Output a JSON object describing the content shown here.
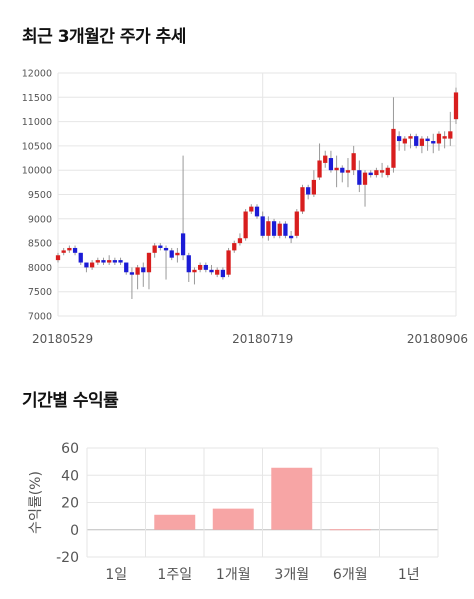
{
  "titles": {
    "price_trend": "최근 3개월간 주가 추세",
    "period_return": "기간별 수익률"
  },
  "colors": {
    "up": "#d81e1e",
    "down": "#1c1cd6",
    "bar": "#f7a5a5",
    "grid": "#e6e6e6"
  },
  "chart_data": [
    {
      "type": "candlestick",
      "title": "최근 3개월간 주가 추세",
      "ylim": [
        7000,
        12000
      ],
      "yticks": [
        7000,
        7500,
        8000,
        8500,
        9000,
        9500,
        10000,
        10500,
        11000,
        11500,
        12000
      ],
      "xtick_labels": [
        {
          "index": 0,
          "label": "20180529"
        },
        {
          "index": 36,
          "label": "20180719"
        },
        {
          "index": 70,
          "label": "20180906"
        }
      ],
      "grid": true,
      "candles": [
        [
          8150,
          8300,
          8100,
          8250
        ],
        [
          8300,
          8400,
          8250,
          8350
        ],
        [
          8350,
          8450,
          8300,
          8400
        ],
        [
          8400,
          8450,
          8250,
          8300
        ],
        [
          8300,
          8300,
          8050,
          8100
        ],
        [
          8100,
          8100,
          7900,
          8000
        ],
        [
          8000,
          8150,
          7950,
          8100
        ],
        [
          8100,
          8200,
          8050,
          8150
        ],
        [
          8150,
          8200,
          8050,
          8100
        ],
        [
          8100,
          8250,
          8050,
          8150
        ],
        [
          8150,
          8200,
          8050,
          8100
        ],
        [
          8150,
          8200,
          8050,
          8100
        ],
        [
          8100,
          8100,
          7850,
          7900
        ],
        [
          7900,
          8000,
          7350,
          7850
        ],
        [
          7850,
          8050,
          7550,
          8000
        ],
        [
          8000,
          8100,
          7600,
          7900
        ],
        [
          7900,
          8300,
          7550,
          8300
        ],
        [
          8300,
          8500,
          8200,
          8450
        ],
        [
          8450,
          8500,
          8350,
          8400
        ],
        [
          8400,
          8450,
          7750,
          8350
        ],
        [
          8350,
          8400,
          8150,
          8200
        ],
        [
          8250,
          8400,
          8100,
          8300
        ],
        [
          8700,
          10300,
          8150,
          8250
        ],
        [
          8250,
          8300,
          7700,
          7900
        ],
        [
          7900,
          8000,
          7650,
          7950
        ],
        [
          7950,
          8100,
          7900,
          8050
        ],
        [
          8050,
          8100,
          7900,
          7950
        ],
        [
          7950,
          8050,
          7850,
          7900
        ],
        [
          7850,
          8000,
          7800,
          7950
        ],
        [
          7950,
          8000,
          7750,
          7800
        ],
        [
          7850,
          8400,
          7800,
          8350
        ],
        [
          8350,
          8550,
          8300,
          8500
        ],
        [
          8500,
          8700,
          8450,
          8600
        ],
        [
          8600,
          9200,
          8550,
          9150
        ],
        [
          9150,
          9300,
          9100,
          9250
        ],
        [
          9250,
          9300,
          9000,
          9050
        ],
        [
          9050,
          9150,
          8600,
          8650
        ],
        [
          8650,
          9050,
          8550,
          8950
        ],
        [
          8950,
          9000,
          8600,
          8650
        ],
        [
          8650,
          8950,
          8600,
          8900
        ],
        [
          8900,
          8950,
          8600,
          8650
        ],
        [
          8650,
          8750,
          8500,
          8600
        ],
        [
          8650,
          9200,
          8600,
          9150
        ],
        [
          9150,
          9700,
          9100,
          9650
        ],
        [
          9650,
          9700,
          9400,
          9500
        ],
        [
          9500,
          10000,
          9450,
          9800
        ],
        [
          9850,
          10550,
          9800,
          10200
        ],
        [
          10150,
          10400,
          10050,
          10300
        ],
        [
          10250,
          10400,
          9950,
          10000
        ],
        [
          10000,
          10300,
          9650,
          10050
        ],
        [
          10050,
          10100,
          9750,
          9950
        ],
        [
          9950,
          10250,
          9650,
          10000
        ],
        [
          10000,
          10500,
          9900,
          10350
        ],
        [
          10000,
          10200,
          9550,
          9700
        ],
        [
          9700,
          10000,
          9250,
          9950
        ],
        [
          9950,
          10000,
          9850,
          9900
        ],
        [
          9900,
          10050,
          9850,
          10000
        ],
        [
          9950,
          10150,
          9850,
          10000
        ],
        [
          9900,
          10100,
          9850,
          10050
        ],
        [
          10050,
          11500,
          9950,
          10850
        ],
        [
          10700,
          10800,
          10400,
          10600
        ],
        [
          10550,
          10700,
          10400,
          10650
        ],
        [
          10650,
          10750,
          10450,
          10700
        ],
        [
          10700,
          10750,
          10450,
          10500
        ],
        [
          10500,
          10700,
          10350,
          10650
        ],
        [
          10650,
          10700,
          10400,
          10600
        ],
        [
          10600,
          10750,
          10350,
          10550
        ],
        [
          10550,
          10800,
          10400,
          10750
        ],
        [
          10650,
          10800,
          10450,
          10700
        ],
        [
          10650,
          11200,
          10500,
          10800
        ],
        [
          11050,
          11700,
          10950,
          11600
        ]
      ]
    },
    {
      "type": "bar",
      "title": "기간별 수익률",
      "categories": [
        "1일",
        "1주일",
        "1개월",
        "3개월",
        "6개월",
        "1년"
      ],
      "values": [
        null,
        11,
        15.5,
        45.5,
        0.4,
        null
      ],
      "ylabel": "수익률(%)",
      "ylim": [
        -20,
        60
      ],
      "yticks": [
        -20,
        0,
        20,
        40,
        60
      ],
      "grid": true
    }
  ]
}
